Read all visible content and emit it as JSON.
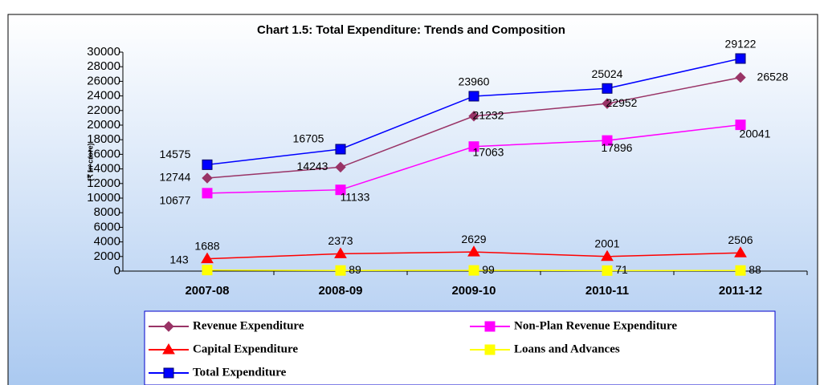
{
  "chart_data": {
    "type": "line",
    "title": "Chart 1.5: Total Expenditure: Trends and Composition",
    "y_label": "(₹ in crore)",
    "categories": [
      "2007-08",
      "2008-09",
      "2009-10",
      "2010-11",
      "2011-12"
    ],
    "series": [
      {
        "name": "Revenue Expenditure",
        "color": "#993366",
        "marker": "diamond",
        "values": [
          12744,
          14243,
          21232,
          22952,
          26528
        ]
      },
      {
        "name": "Non-Plan Revenue Expenditure",
        "color": "#ff00ff",
        "marker": "square",
        "values": [
          10677,
          11133,
          17063,
          17896,
          20041
        ]
      },
      {
        "name": "Capital Expenditure",
        "color": "#ff0000",
        "marker": "triangle",
        "values": [
          1688,
          2373,
          2629,
          2001,
          2506
        ]
      },
      {
        "name": "Loans and Advances",
        "color": "#ffff00",
        "marker": "square",
        "values": [
          143,
          89,
          99,
          71,
          88
        ]
      },
      {
        "name": "Total Expenditure",
        "color": "#0000ff",
        "marker": "square",
        "values": [
          14575,
          16705,
          23960,
          25024,
          29122
        ]
      }
    ],
    "ylim": [
      0,
      30000
    ],
    "yticks": [
      0,
      2000,
      4000,
      6000,
      8000,
      10000,
      12000,
      14000,
      16000,
      18000,
      20000,
      22000,
      24000,
      26000,
      28000,
      30000
    ]
  }
}
